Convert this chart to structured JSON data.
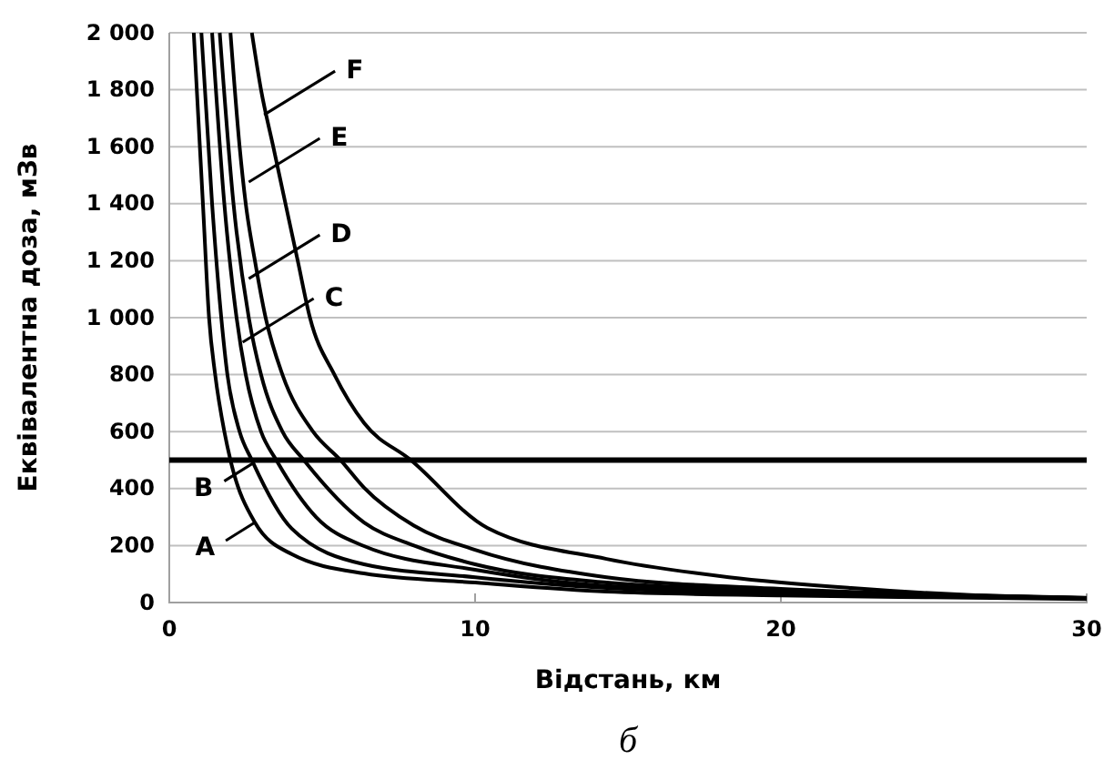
{
  "chart_data": {
    "type": "line",
    "xlabel": "Відстань, км",
    "ylabel": "Еквівалентна доза, мЗв",
    "xlim": [
      0,
      30
    ],
    "xticks": [
      0,
      10,
      20,
      30
    ],
    "ylim": [
      0,
      2000
    ],
    "yticks": [
      0,
      200,
      400,
      600,
      800,
      {
        "value": 1000,
        "label": "1 000"
      },
      {
        "value": 1200,
        "label": "1 200"
      },
      {
        "value": 1400,
        "label": "1 400"
      },
      {
        "value": 1600,
        "label": "1 600"
      },
      {
        "value": 1800,
        "label": "1 800"
      },
      {
        "value": 2000,
        "label": "2 000"
      }
    ],
    "grid": "y",
    "marker": "none",
    "line_style": "solid",
    "series": [
      {
        "color": "#000000",
        "x": [
          0.8,
          1.1,
          1.3,
          1.5,
          1.8,
          2.0,
          2.8,
          4,
          6.37,
          10,
          14.3,
          20,
          25,
          30
        ],
        "values": [
          2000,
          1400,
          1000,
          800,
          600,
          500,
          281,
          170,
          102,
          70,
          38,
          25,
          18,
          12
        ]
      },
      {
        "color": "#000000",
        "x": [
          1.05,
          1.4,
          1.7,
          1.9,
          2.3,
          2.7,
          4,
          6.37,
          10,
          14.3,
          20,
          25,
          30
        ],
        "values": [
          2000,
          1400,
          1000,
          800,
          600,
          500,
          260,
          134,
          89,
          51,
          32,
          22,
          14
        ]
      },
      {
        "color": "#000000",
        "x": [
          1.4,
          1.8,
          2.2,
          2.5,
          3.0,
          3.5,
          4.8,
          6.37,
          10,
          14.3,
          20,
          25,
          30
        ],
        "values": [
          2000,
          1400,
          1000,
          800,
          600,
          500,
          300,
          198,
          115,
          58,
          38,
          25,
          15
        ]
      },
      {
        "color": "#000000",
        "x": [
          1.65,
          2.1,
          2.6,
          3.0,
          3.7,
          4.4,
          6.37,
          8,
          10,
          14.3,
          20,
          25,
          30
        ],
        "values": [
          2000,
          1400,
          1000,
          800,
          600,
          500,
          281,
          200,
          134,
          70,
          42,
          27,
          16
        ]
      },
      {
        "color": "#000000",
        "x": [
          2.0,
          2.3,
          2.5,
          2.8,
          3.15,
          3.7,
          4.7,
          5.6,
          6.37,
          8,
          10,
          14.3,
          20,
          25,
          30
        ],
        "values": [
          2000,
          1600,
          1400,
          1200,
          1000,
          800,
          600,
          500,
          403,
          270,
          185,
          89,
          48,
          28,
          17
        ]
      },
      {
        "color": "#000000",
        "x": [
          2.7,
          3.0,
          3.4,
          3.8,
          4.2,
          4.6,
          5.4,
          6.37,
          7.9,
          10.4,
          14.3,
          18.3,
          22.3,
          26.2,
          30
        ],
        "values": [
          2000,
          1800,
          1600,
          1400,
          1200,
          1000,
          800,
          630,
          500,
          262,
          153,
          89,
          51,
          26,
          15
        ]
      }
    ],
    "ref_lines": [
      {
        "axis": "y",
        "value": 500,
        "color": "#000000"
      }
    ],
    "annotations": [
      {
        "text": "A",
        "x": 2.8,
        "y": 281
      },
      {
        "text": "B",
        "x": 2.75,
        "y": 490
      },
      {
        "text": "C",
        "x": 2.4,
        "y": 914
      },
      {
        "text": "D",
        "x": 2.6,
        "y": 1137
      },
      {
        "text": "E",
        "x": 2.6,
        "y": 1476
      },
      {
        "text": "F",
        "x": 3.1,
        "y": 1712
      },
      "б"
    ]
  }
}
